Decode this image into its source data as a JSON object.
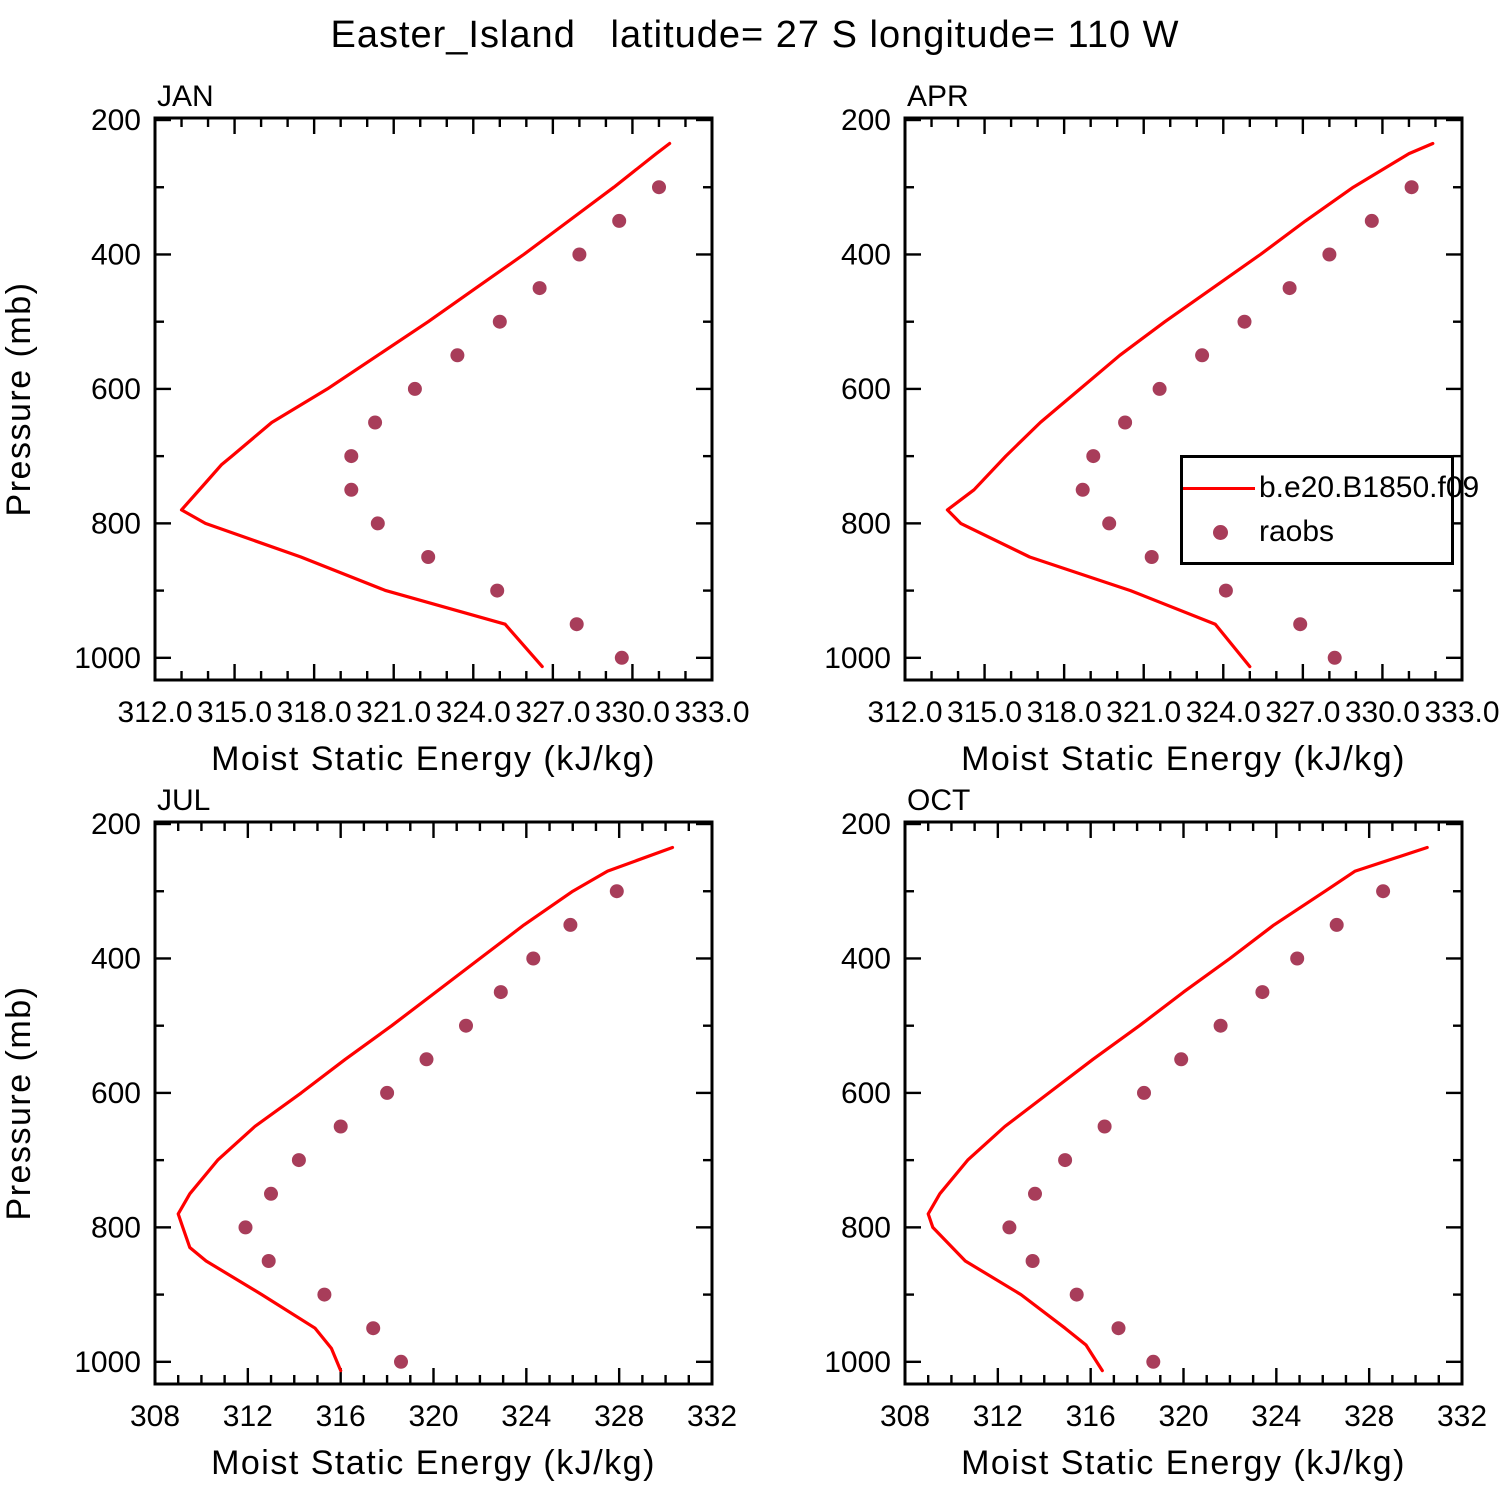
{
  "title": "Easter_Island   latitude= 27 S longitude= 110 W",
  "legend": {
    "position": "overlay-top-right-panel",
    "entries": [
      {
        "label": "b.e20.B1850.f09",
        "marker": "line",
        "color": "#ff0000"
      },
      {
        "label": "raobs",
        "marker": "dot",
        "color": "#a83d5a"
      }
    ]
  },
  "chart_data": [
    {
      "type": "line",
      "panel_label": "JAN",
      "xlabel": "Moist Static Energy (kJ/kg)",
      "ylabel": "Pressure (mb)",
      "xlim": [
        312,
        333
      ],
      "xticks": [
        312,
        315,
        318,
        321,
        324,
        327,
        330,
        333
      ],
      "xtick_labels": [
        "312.0",
        "315.0",
        "318.0",
        "321.0",
        "324.0",
        "327.0",
        "330.0",
        "333.0"
      ],
      "x_minor_step": 1,
      "ylim": [
        1033,
        197
      ],
      "yticks": [
        200,
        400,
        600,
        800,
        1000
      ],
      "y_minor_step": 100,
      "grid": false,
      "series": [
        {
          "name": "b.e20.B1850.f09",
          "style": "line",
          "points_mse_pressure": [
            [
              326.6,
              1013
            ],
            [
              325.2,
              950
            ],
            [
              320.7,
              900
            ],
            [
              317.5,
              850
            ],
            [
              313.9,
              800
            ],
            [
              313.0,
              780
            ],
            [
              313.9,
              740
            ],
            [
              314.5,
              713
            ],
            [
              314.9,
              700
            ],
            [
              316.4,
              650
            ],
            [
              318.5,
              600
            ],
            [
              320.4,
              550
            ],
            [
              322.3,
              500
            ],
            [
              324.1,
              450
            ],
            [
              325.9,
              400
            ],
            [
              327.6,
              350
            ],
            [
              329.3,
              300
            ],
            [
              330.9,
              250
            ],
            [
              331.4,
              235
            ]
          ]
        },
        {
          "name": "raobs",
          "style": "dots",
          "points_mse_pressure": [
            [
              329.6,
              1000
            ],
            [
              327.9,
              950
            ],
            [
              324.9,
              900
            ],
            [
              322.3,
              850
            ],
            [
              320.4,
              800
            ],
            [
              319.4,
              750
            ],
            [
              319.4,
              700
            ],
            [
              320.3,
              650
            ],
            [
              321.8,
              600
            ],
            [
              323.4,
              550
            ],
            [
              325.0,
              500
            ],
            [
              326.5,
              450
            ],
            [
              328.0,
              400
            ],
            [
              329.5,
              350
            ],
            [
              331.0,
              300
            ]
          ]
        }
      ]
    },
    {
      "type": "line",
      "panel_label": "APR",
      "xlabel": "Moist Static Energy (kJ/kg)",
      "ylabel": "Pressure (mb)",
      "xlim": [
        312,
        333
      ],
      "xticks": [
        312,
        315,
        318,
        321,
        324,
        327,
        330,
        333
      ],
      "xtick_labels": [
        "312.0",
        "315.0",
        "318.0",
        "321.0",
        "324.0",
        "327.0",
        "330.0",
        "333.0"
      ],
      "x_minor_step": 1,
      "ylim": [
        1033,
        197
      ],
      "yticks": [
        200,
        400,
        600,
        800,
        1000
      ],
      "y_minor_step": 100,
      "grid": false,
      "series": [
        {
          "name": "b.e20.B1850.f09",
          "style": "line",
          "points_mse_pressure": [
            [
              325.0,
              1013
            ],
            [
              323.7,
              950
            ],
            [
              320.5,
              900
            ],
            [
              316.7,
              850
            ],
            [
              314.1,
              800
            ],
            [
              313.6,
              780
            ],
            [
              314.6,
              750
            ],
            [
              315.8,
              700
            ],
            [
              317.1,
              650
            ],
            [
              318.6,
              600
            ],
            [
              320.1,
              550
            ],
            [
              321.8,
              500
            ],
            [
              323.6,
              450
            ],
            [
              325.4,
              400
            ],
            [
              327.1,
              350
            ],
            [
              328.9,
              300
            ],
            [
              331.0,
              250
            ],
            [
              331.9,
              235
            ]
          ]
        },
        {
          "name": "raobs",
          "style": "dots",
          "points_mse_pressure": [
            [
              328.2,
              1000
            ],
            [
              326.9,
              950
            ],
            [
              324.1,
              900
            ],
            [
              321.3,
              850
            ],
            [
              319.7,
              800
            ],
            [
              318.7,
              750
            ],
            [
              319.1,
              700
            ],
            [
              320.3,
              650
            ],
            [
              321.6,
              600
            ],
            [
              323.2,
              550
            ],
            [
              324.8,
              500
            ],
            [
              326.5,
              450
            ],
            [
              328.0,
              400
            ],
            [
              329.6,
              350
            ],
            [
              331.1,
              300
            ]
          ]
        }
      ]
    },
    {
      "type": "line",
      "panel_label": "JUL",
      "xlabel": "Moist Static Energy (kJ/kg)",
      "ylabel": "Pressure (mb)",
      "xlim": [
        308,
        332
      ],
      "xticks": [
        308,
        312,
        316,
        320,
        324,
        328,
        332
      ],
      "xtick_labels": [
        "308",
        "312",
        "316",
        "320",
        "324",
        "328",
        "332"
      ],
      "x_minor_step": 1,
      "ylim": [
        1033,
        197
      ],
      "yticks": [
        200,
        400,
        600,
        800,
        1000
      ],
      "y_minor_step": 100,
      "grid": false,
      "series": [
        {
          "name": "b.e20.B1850.f09",
          "style": "line",
          "points_mse_pressure": [
            [
              316.0,
              1013
            ],
            [
              315.6,
              980
            ],
            [
              314.9,
              950
            ],
            [
              312.6,
              900
            ],
            [
              310.2,
              850
            ],
            [
              309.5,
              830
            ],
            [
              309.2,
              800
            ],
            [
              309.0,
              780
            ],
            [
              309.5,
              750
            ],
            [
              310.7,
              700
            ],
            [
              312.3,
              650
            ],
            [
              314.3,
              600
            ],
            [
              316.2,
              550
            ],
            [
              318.2,
              500
            ],
            [
              320.1,
              450
            ],
            [
              322.0,
              400
            ],
            [
              323.9,
              350
            ],
            [
              326.0,
              300
            ],
            [
              327.5,
              270
            ],
            [
              330.3,
              235
            ]
          ]
        },
        {
          "name": "raobs",
          "style": "dots",
          "points_mse_pressure": [
            [
              318.6,
              1000
            ],
            [
              317.4,
              950
            ],
            [
              315.3,
              900
            ],
            [
              312.9,
              850
            ],
            [
              311.9,
              800
            ],
            [
              313.0,
              750
            ],
            [
              314.2,
              700
            ],
            [
              316.0,
              650
            ],
            [
              318.0,
              600
            ],
            [
              319.7,
              550
            ],
            [
              321.4,
              500
            ],
            [
              322.9,
              450
            ],
            [
              324.3,
              400
            ],
            [
              325.9,
              350
            ],
            [
              327.9,
              300
            ]
          ]
        }
      ]
    },
    {
      "type": "line",
      "panel_label": "OCT",
      "xlabel": "Moist Static Energy (kJ/kg)",
      "ylabel": "Pressure (mb)",
      "xlim": [
        308,
        332
      ],
      "xticks": [
        308,
        312,
        316,
        320,
        324,
        328,
        332
      ],
      "xtick_labels": [
        "308",
        "312",
        "316",
        "320",
        "324",
        "328",
        "332"
      ],
      "x_minor_step": 1,
      "ylim": [
        1033,
        197
      ],
      "yticks": [
        200,
        400,
        600,
        800,
        1000
      ],
      "y_minor_step": 100,
      "grid": false,
      "series": [
        {
          "name": "b.e20.B1850.f09",
          "style": "line",
          "points_mse_pressure": [
            [
              316.5,
              1013
            ],
            [
              315.8,
              975
            ],
            [
              314.9,
              950
            ],
            [
              313.0,
              900
            ],
            [
              310.6,
              850
            ],
            [
              309.2,
              800
            ],
            [
              309.0,
              780
            ],
            [
              309.5,
              750
            ],
            [
              310.7,
              700
            ],
            [
              312.3,
              650
            ],
            [
              314.2,
              600
            ],
            [
              316.1,
              550
            ],
            [
              318.1,
              500
            ],
            [
              320.0,
              450
            ],
            [
              322.0,
              400
            ],
            [
              323.9,
              350
            ],
            [
              326.1,
              300
            ],
            [
              327.4,
              270
            ],
            [
              330.5,
              235
            ]
          ]
        },
        {
          "name": "raobs",
          "style": "dots",
          "points_mse_pressure": [
            [
              318.7,
              1000
            ],
            [
              317.2,
              950
            ],
            [
              315.4,
              900
            ],
            [
              313.5,
              850
            ],
            [
              312.5,
              800
            ],
            [
              313.6,
              750
            ],
            [
              314.9,
              700
            ],
            [
              316.6,
              650
            ],
            [
              318.3,
              600
            ],
            [
              319.9,
              550
            ],
            [
              321.6,
              500
            ],
            [
              323.4,
              450
            ],
            [
              324.9,
              400
            ],
            [
              326.6,
              350
            ],
            [
              328.6,
              300
            ]
          ]
        }
      ]
    }
  ]
}
